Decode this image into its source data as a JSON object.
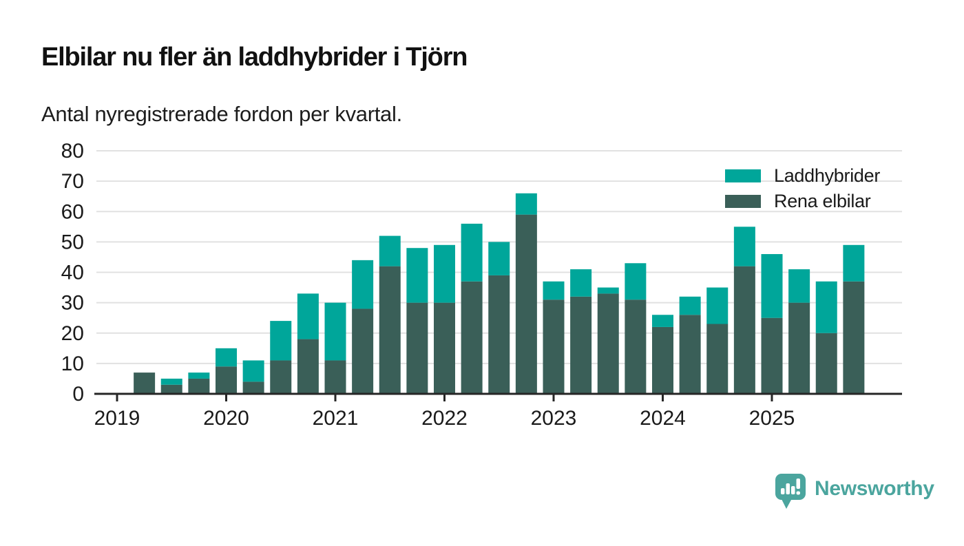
{
  "title": "Elbilar nu fler än laddhybrider i Tjörn",
  "subtitle": "Antal nyregistrerade fordon per kvartal.",
  "legend": [
    {
      "label": "Laddhybrider",
      "color": "#00a69a"
    },
    {
      "label": "Rena elbilar",
      "color": "#3a5f58"
    }
  ],
  "logo": {
    "text": "Newsworthy",
    "color": "#4ba59e"
  },
  "chart_data": {
    "type": "bar",
    "stacked": true,
    "title": "Elbilar nu fler än laddhybrider i Tjörn",
    "subtitle": "Antal nyregistrerade fordon per kvartal.",
    "categories": [
      "2019 Q1",
      "2019 Q2",
      "2019 Q3",
      "2019 Q4",
      "2020 Q1",
      "2020 Q2",
      "2020 Q3",
      "2020 Q4",
      "2021 Q1",
      "2021 Q2",
      "2021 Q3",
      "2021 Q4",
      "2022 Q1",
      "2022 Q2",
      "2022 Q3",
      "2022 Q4",
      "2023 Q1",
      "2023 Q2",
      "2023 Q3",
      "2023 Q4",
      "2024 Q1",
      "2024 Q2",
      "2024 Q3",
      "2024 Q4",
      "2025 Q1",
      "2025 Q2",
      "2025 Q3",
      "2025 Q4"
    ],
    "series": [
      {
        "name": "Rena elbilar",
        "color": "#3a5f58",
        "values": [
          0,
          7,
          3,
          5,
          9,
          4,
          11,
          18,
          11,
          28,
          42,
          30,
          30,
          37,
          39,
          59,
          31,
          32,
          33,
          31,
          22,
          26,
          23,
          42,
          25,
          30,
          20,
          37
        ]
      },
      {
        "name": "Laddhybrider",
        "color": "#00a69a",
        "values": [
          0,
          0,
          2,
          2,
          6,
          7,
          13,
          15,
          19,
          16,
          10,
          18,
          19,
          19,
          11,
          7,
          6,
          9,
          2,
          12,
          4,
          6,
          12,
          13,
          21,
          11,
          17,
          12
        ]
      }
    ],
    "totals": [
      0,
      7,
      5,
      7,
      15,
      11,
      24,
      33,
      30,
      44,
      52,
      48,
      49,
      56,
      50,
      66,
      37,
      41,
      35,
      43,
      26,
      32,
      35,
      55,
      46,
      41,
      37,
      49
    ],
    "xticks": [
      "2019",
      "2020",
      "2021",
      "2022",
      "2023",
      "2024",
      "2025"
    ],
    "ylim": [
      0,
      80
    ],
    "yticks": [
      0,
      10,
      20,
      30,
      40,
      50,
      60,
      70,
      80
    ],
    "grid": "horizontal",
    "legend_position": "top-right"
  }
}
